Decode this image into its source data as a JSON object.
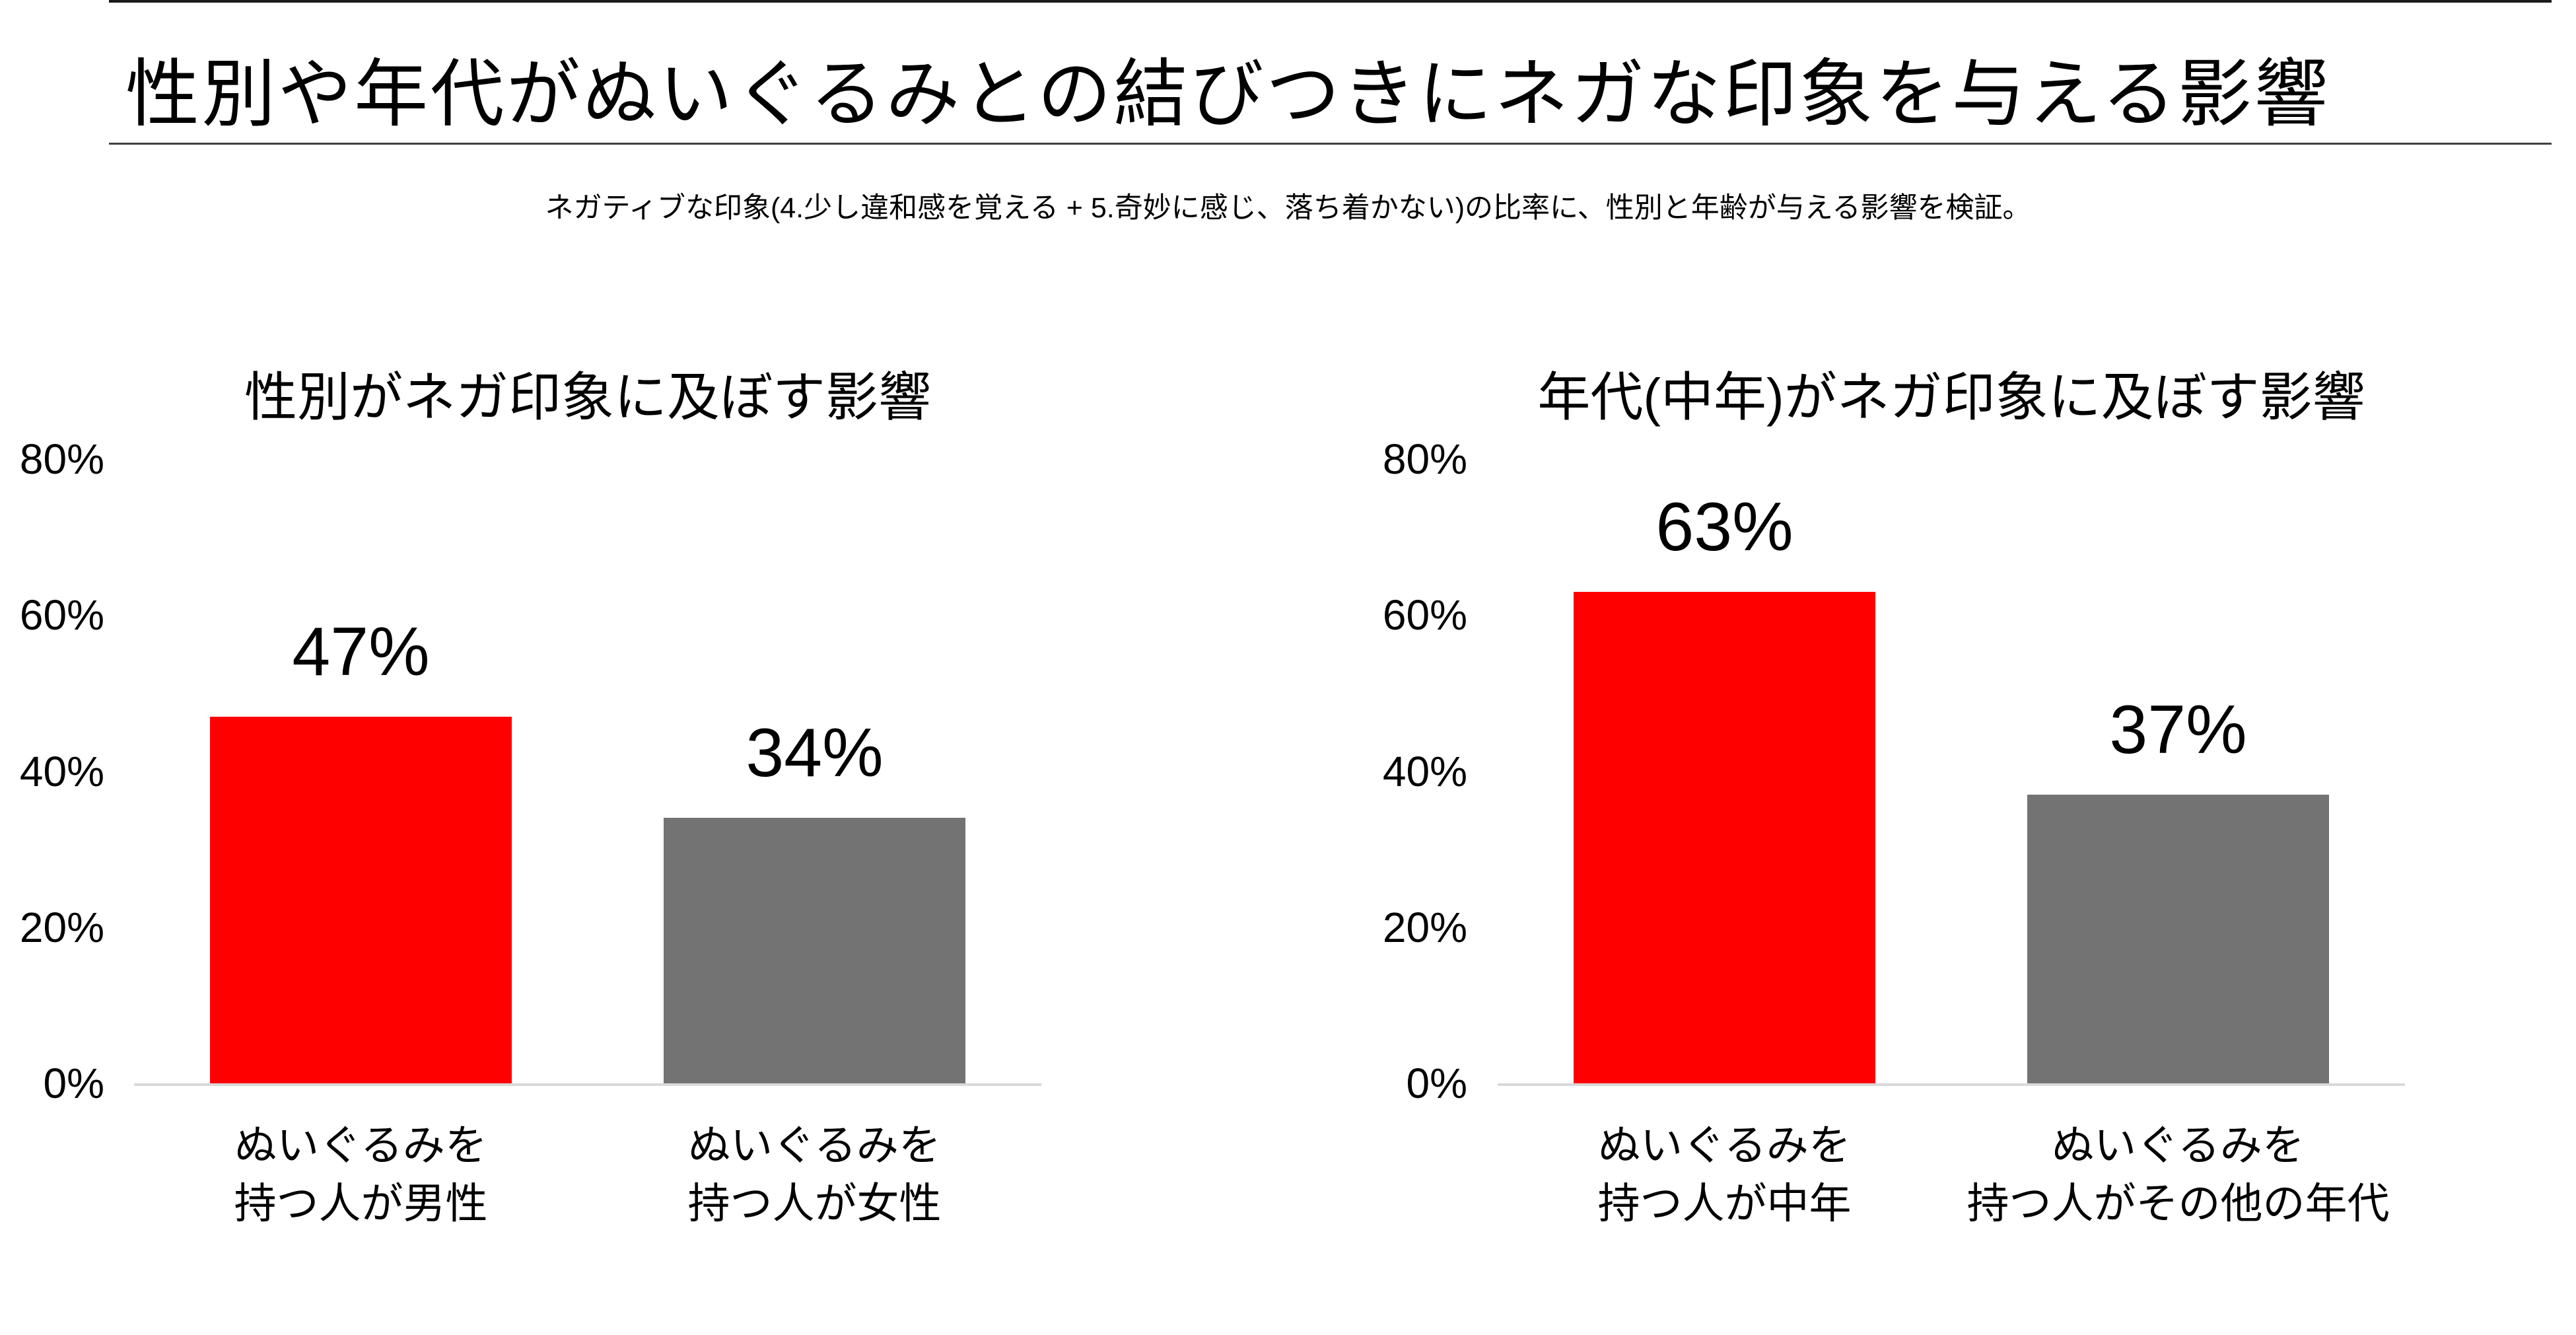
{
  "page": {
    "title": "性別や年代がぬいぐるみとの結びつきにネガな印象を与える影響",
    "subtitle": "ネガティブな印象(4.少し違和感を覚える + 5.奇妙に感じ、落ち着かない)の比率に、性別と年齢が与える影響を検証。"
  },
  "colors": {
    "highlight_bar": "#FF0000",
    "neutral_bar": "#737373",
    "axis_line": "#D9D9D9",
    "text": "#000000"
  },
  "chart_data": [
    {
      "type": "bar",
      "title": "性別がネガ印象に及ぼす影響",
      "categories": [
        "ぬいぐるみを\n持つ人が男性",
        "ぬいぐるみを\n持つ人が女性"
      ],
      "values": [
        47,
        34
      ],
      "value_labels": [
        "47%",
        "34%"
      ],
      "bar_colors": [
        "#FF0000",
        "#737373"
      ],
      "xlabel": "",
      "ylabel": "",
      "ylim": [
        0,
        80
      ],
      "yticks": [
        0,
        20,
        40,
        60,
        80
      ],
      "ytick_labels": [
        "0%",
        "20%",
        "40%",
        "60%",
        "80%"
      ],
      "grid": false,
      "legend": false
    },
    {
      "type": "bar",
      "title": "年代(中年)がネガ印象に及ぼす影響",
      "categories": [
        "ぬいぐるみを\n持つ人が中年",
        "ぬいぐるみを\n持つ人がその他の年代"
      ],
      "values": [
        63,
        37
      ],
      "value_labels": [
        "63%",
        "37%"
      ],
      "bar_colors": [
        "#FF0000",
        "#737373"
      ],
      "xlabel": "",
      "ylabel": "",
      "ylim": [
        0,
        80
      ],
      "yticks": [
        0,
        20,
        40,
        60,
        80
      ],
      "ytick_labels": [
        "0%",
        "20%",
        "40%",
        "60%",
        "80%"
      ],
      "grid": false,
      "legend": false
    }
  ]
}
